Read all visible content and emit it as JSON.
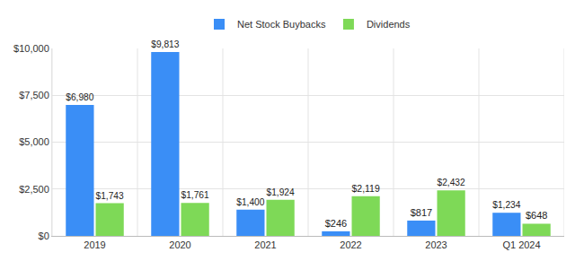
{
  "chart_data": {
    "type": "bar",
    "categories": [
      "2019",
      "2020",
      "2021",
      "2022",
      "2023",
      "Q1 2024"
    ],
    "series": [
      {
        "name": "Net Stock Buybacks",
        "color": "#3a8ef6",
        "values": [
          6980,
          9813,
          1400,
          246,
          817,
          1234
        ],
        "value_labels": [
          "$6,980",
          "$9,813",
          "$1,400",
          "$246",
          "$817",
          "$1,234"
        ]
      },
      {
        "name": "Dividends",
        "color": "#7ed957",
        "values": [
          1743,
          1761,
          1924,
          2119,
          2432,
          648
        ],
        "value_labels": [
          "$1,743",
          "$1,761",
          "$1,924",
          "$2,119",
          "$2,432",
          "$648"
        ]
      }
    ],
    "ylim": [
      0,
      10000
    ],
    "yticks": [
      {
        "value": 0,
        "label": "$0"
      },
      {
        "value": 2500,
        "label": "$2,500"
      },
      {
        "value": 5000,
        "label": "$5,000"
      },
      {
        "value": 7500,
        "label": "$7,500"
      },
      {
        "value": 10000,
        "label": "$10,000"
      }
    ],
    "grid": true,
    "legend": "top",
    "data_labels": true
  }
}
